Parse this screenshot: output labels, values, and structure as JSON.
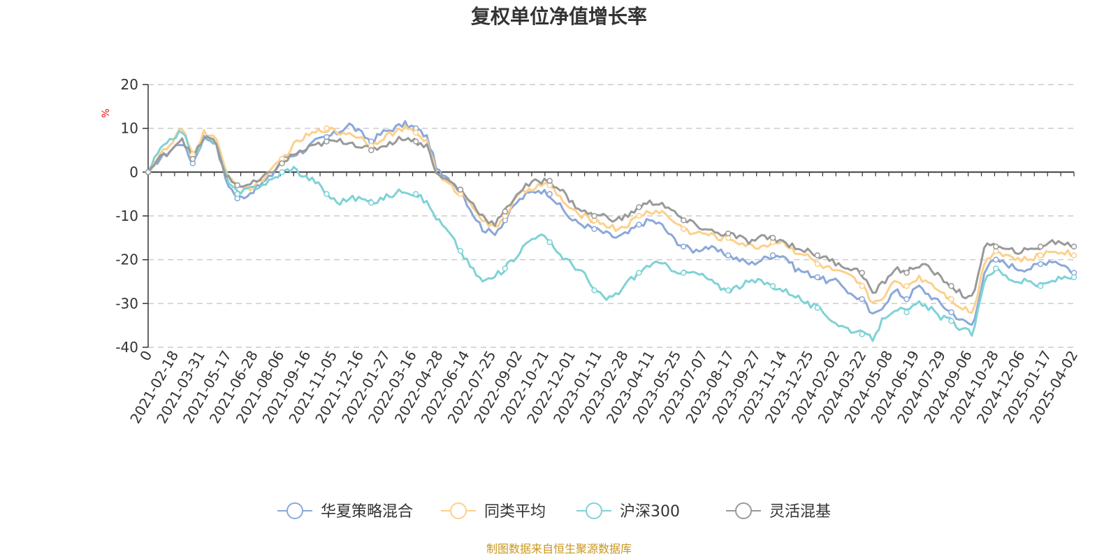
{
  "chart_data": {
    "type": "line",
    "title": "复权单位净值增长率",
    "ylabel": "%",
    "ylim": [
      -40,
      20
    ],
    "yticks": [
      20,
      10,
      0,
      -10,
      -20,
      -30,
      -40
    ],
    "grid": true,
    "legend_position": "bottom",
    "x_tick_labels": [
      "0",
      "2021-02-18",
      "2021-03-31",
      "2021-05-17",
      "2021-06-28",
      "2021-08-06",
      "2021-09-16",
      "2021-11-05",
      "2021-12-16",
      "2022-01-27",
      "2022-03-16",
      "2022-04-28",
      "2022-06-14",
      "2022-07-25",
      "2022-09-02",
      "2022-10-21",
      "2022-12-01",
      "2023-01-11",
      "2023-02-28",
      "2023-04-11",
      "2023-05-25",
      "2023-07-07",
      "2023-08-17",
      "2023-09-27",
      "2023-11-14",
      "2023-12-25",
      "2024-02-02",
      "2024-03-22",
      "2024-05-08",
      "2024-06-19",
      "2024-07-29",
      "2024-09-06",
      "2024-10-28",
      "2024-12-06",
      "2025-01-17",
      "2025-04-02"
    ],
    "series": [
      {
        "name": "华夏策略混合",
        "color": "#8aa8d8",
        "values": [
          0,
          3,
          5,
          7,
          2,
          8,
          7,
          -2,
          -6,
          -5,
          -3,
          -1,
          3,
          4,
          5,
          7,
          8,
          9,
          11,
          9,
          7,
          9,
          10,
          11,
          10,
          8,
          0,
          -2,
          -4,
          -9,
          -13,
          -14,
          -11,
          -7,
          -5,
          -4,
          -5,
          -8,
          -11,
          -12,
          -13,
          -14,
          -15,
          -14,
          -12,
          -11,
          -12,
          -15,
          -17,
          -18,
          -17,
          -18,
          -19,
          -20,
          -21,
          -20,
          -19,
          -19,
          -22,
          -23,
          -24,
          -25,
          -25,
          -28,
          -29,
          -33,
          -30,
          -27,
          -29,
          -26,
          -28,
          -30,
          -32,
          -34,
          -35,
          -22,
          -20,
          -21,
          -22,
          -22,
          -21,
          -20,
          -21,
          -23
        ]
      },
      {
        "name": "同类平均",
        "color": "#fdd08a",
        "values": [
          0,
          4,
          6,
          10,
          4,
          9,
          8,
          0,
          -3,
          -4,
          -2,
          0,
          3,
          6,
          8,
          9,
          10,
          9,
          9,
          8,
          6,
          8,
          9,
          10,
          9,
          7,
          -1,
          -3,
          -5,
          -7,
          -11,
          -13,
          -10,
          -6,
          -4,
          -3,
          -3,
          -6,
          -9,
          -10,
          -11,
          -12,
          -13,
          -12,
          -10,
          -9,
          -9,
          -11,
          -13,
          -14,
          -14,
          -15,
          -15,
          -16,
          -17,
          -17,
          -16,
          -16,
          -18,
          -19,
          -21,
          -22,
          -23,
          -24,
          -26,
          -30,
          -28,
          -25,
          -26,
          -24,
          -25,
          -27,
          -29,
          -31,
          -32,
          -20,
          -18,
          -19,
          -20,
          -20,
          -19,
          -18,
          -18,
          -19
        ]
      },
      {
        "name": "沪深300",
        "color": "#7fd2d6",
        "values": [
          0,
          5,
          7,
          10,
          3,
          8,
          7,
          -1,
          -5,
          -4,
          -3,
          -2,
          0,
          1,
          -1,
          -2,
          -5,
          -7,
          -6,
          -6,
          -7,
          -6,
          -5,
          -4,
          -5,
          -7,
          -11,
          -14,
          -18,
          -22,
          -25,
          -24,
          -22,
          -19,
          -16,
          -14,
          -16,
          -19,
          -21,
          -23,
          -27,
          -29,
          -28,
          -25,
          -23,
          -21,
          -21,
          -22,
          -23,
          -23,
          -24,
          -26,
          -27,
          -26,
          -25,
          -25,
          -26,
          -27,
          -28,
          -30,
          -31,
          -33,
          -35,
          -36,
          -37,
          -38,
          -33,
          -31,
          -32,
          -30,
          -31,
          -33,
          -34,
          -36,
          -37,
          -24,
          -22,
          -24,
          -25,
          -25,
          -26,
          -25,
          -24,
          -24
        ]
      },
      {
        "name": "灵活混基",
        "color": "#999999",
        "values": [
          0,
          3,
          5,
          8,
          3,
          8,
          7,
          -1,
          -3,
          -3,
          -2,
          0,
          2,
          4,
          5,
          6,
          7,
          7,
          7,
          6,
          5,
          6,
          7,
          8,
          7,
          6,
          -1,
          -2,
          -4,
          -7,
          -10,
          -12,
          -9,
          -5,
          -3,
          -2,
          -2,
          -4,
          -7,
          -9,
          -10,
          -10,
          -11,
          -10,
          -8,
          -7,
          -7,
          -9,
          -11,
          -12,
          -13,
          -14,
          -14,
          -15,
          -16,
          -15,
          -15,
          -16,
          -17,
          -18,
          -19,
          -20,
          -21,
          -22,
          -23,
          -28,
          -25,
          -22,
          -23,
          -21,
          -22,
          -24,
          -26,
          -28,
          -29,
          -16,
          -17,
          -18,
          -18,
          -18,
          -17,
          -16,
          -16,
          -17
        ]
      }
    ],
    "source_note": "制图数据来自恒生聚源数据库"
  }
}
